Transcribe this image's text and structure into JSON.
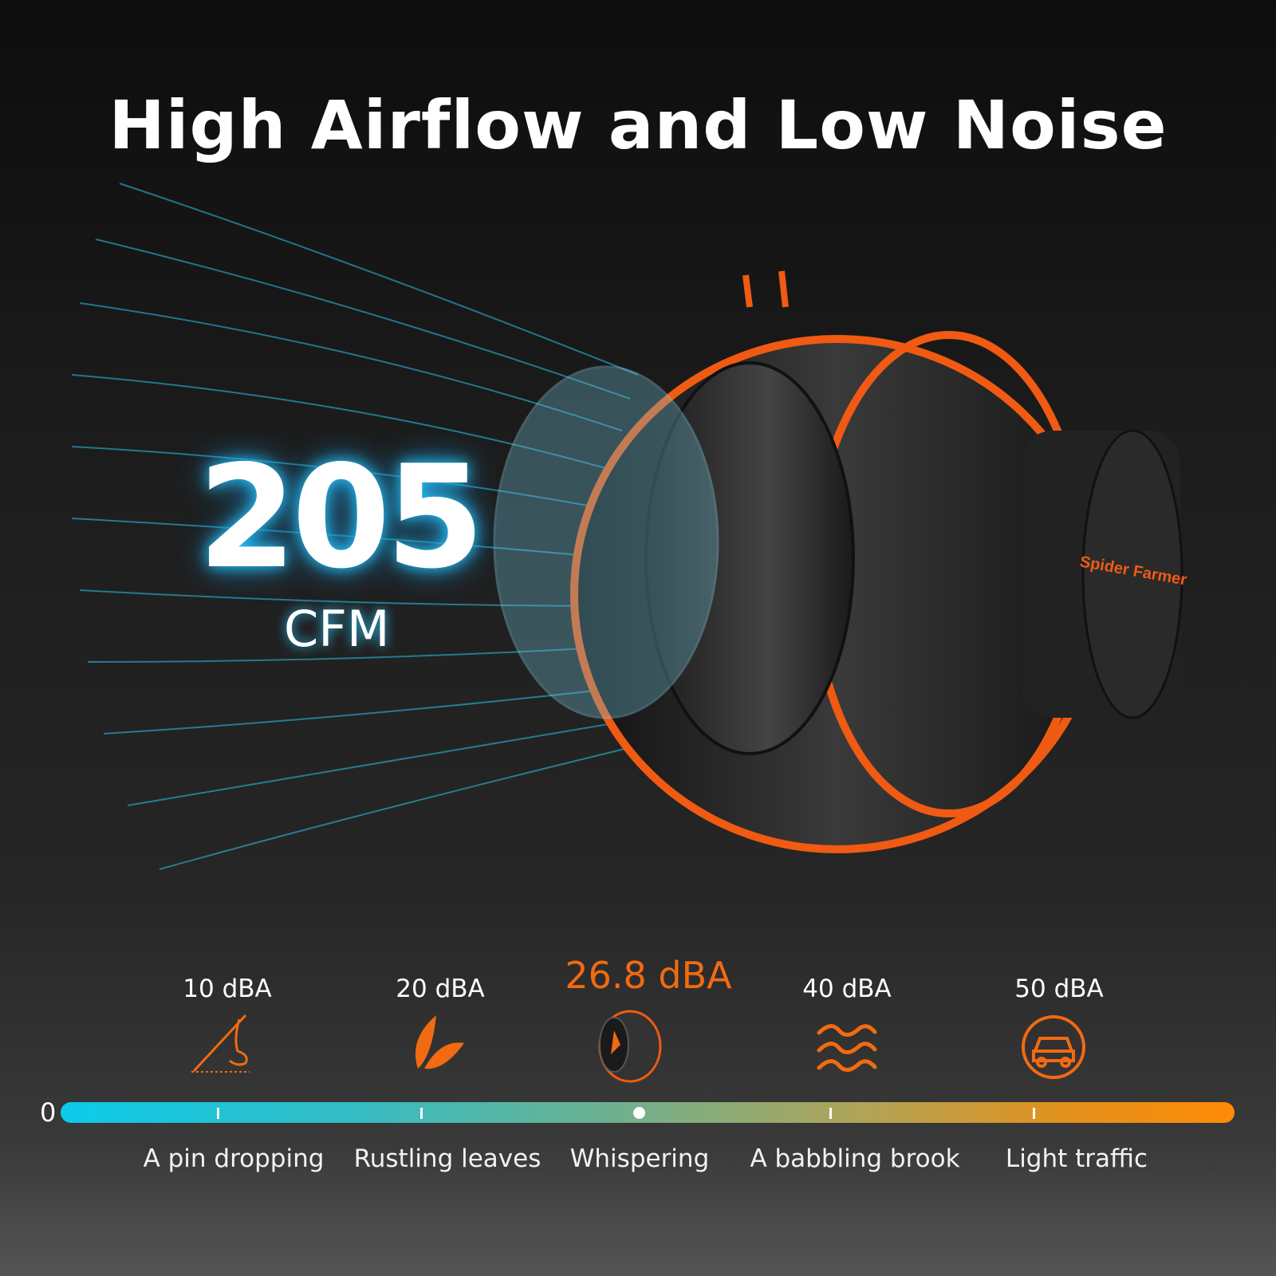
{
  "title": "High Airflow and Low Noise",
  "airflow": {
    "value": "205",
    "unit": "CFM"
  },
  "brand_logo": "Spider Farmer",
  "colors": {
    "accent": "#f26a12",
    "glow": "#28c8ff",
    "background": "#1c1c1c"
  },
  "noise_scale": {
    "zero_label": "0",
    "levels": [
      {
        "value": "10 dBA",
        "label": "A pin dropping",
        "icon": "needle-icon"
      },
      {
        "value": "20 dBA",
        "label": "Rustling leaves",
        "icon": "leaf-icon"
      },
      {
        "value": "26.8 dBA",
        "label": "Whispering",
        "icon": "fan-product-icon",
        "highlight": true
      },
      {
        "value": "40 dBA",
        "label": "A babbling brook",
        "icon": "waves-icon"
      },
      {
        "value": "50 dBA",
        "label": "Light traffic",
        "icon": "car-icon"
      }
    ]
  }
}
